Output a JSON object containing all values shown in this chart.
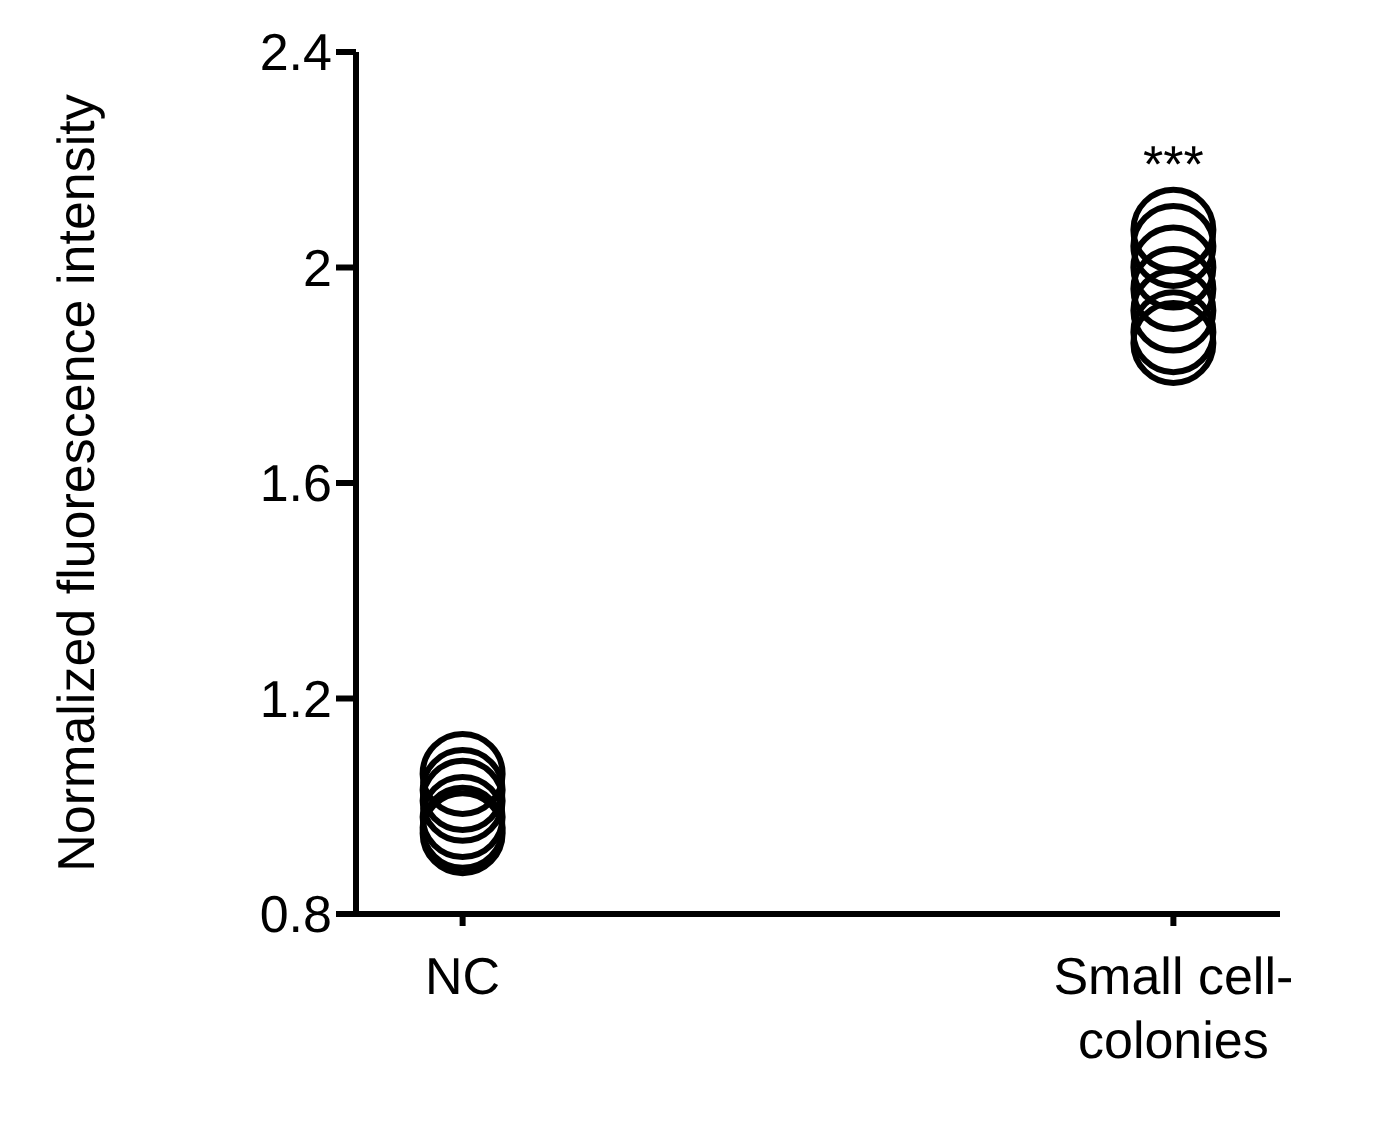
{
  "chart_data": {
    "type": "scatter",
    "ylabel": "Normalized fluorescence intensity",
    "categories": [
      "NC",
      "Small cell-colonies"
    ],
    "series": [
      {
        "color": "#000000",
        "x": [
          "NC",
          "NC",
          "NC",
          "NC",
          "NC",
          "NC"
        ],
        "values": [
          1.06,
          1.03,
          1.01,
          0.98,
          0.96,
          0.95
        ]
      },
      {
        "color": "#000000",
        "x": [
          "Small cell-colonies",
          "Small cell-colonies",
          "Small cell-colonies",
          "Small cell-colonies",
          "Small cell-colonies",
          "Small cell-colonies",
          "Small cell-colonies"
        ],
        "values": [
          2.07,
          2.04,
          2.0,
          1.96,
          1.92,
          1.88,
          1.86
        ]
      }
    ],
    "ylim": [
      0.8,
      2.4
    ],
    "yticks": [
      0.8,
      1.2,
      1.6,
      2,
      2.4
    ],
    "marker": "circle",
    "grid": false,
    "legend": false,
    "annotations": [
      "***"
    ]
  }
}
